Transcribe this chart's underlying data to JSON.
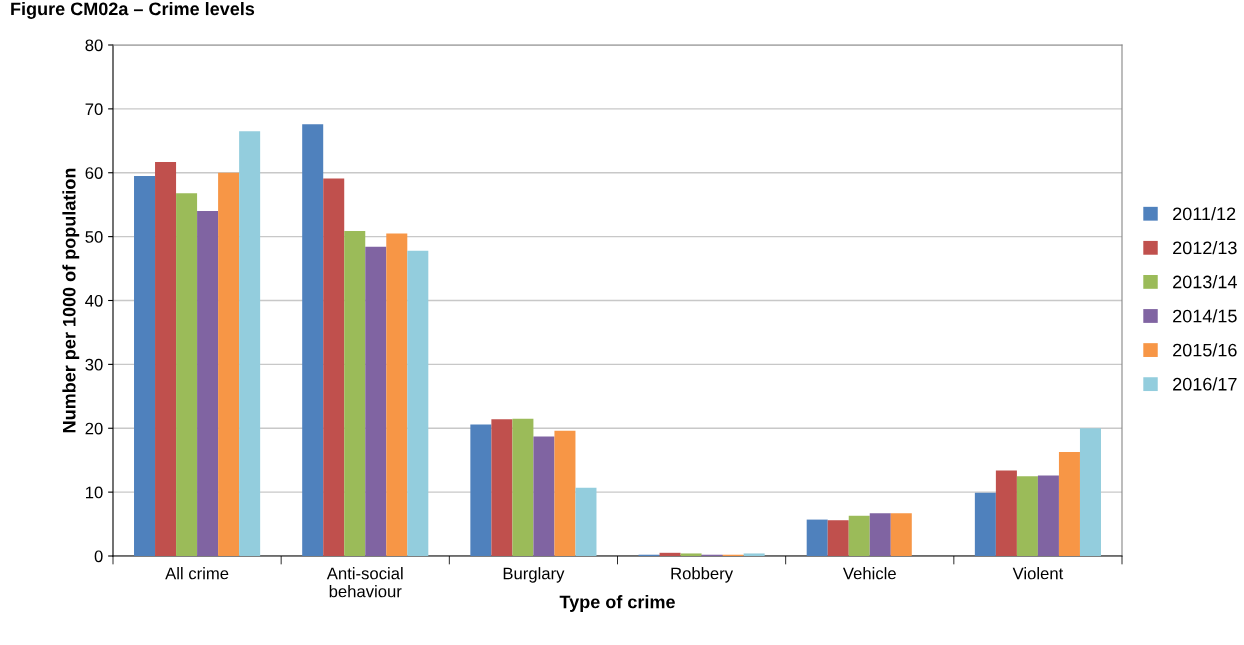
{
  "chart_data": {
    "type": "bar",
    "title": "Figure CM02a – Crime levels",
    "xlabel": "Type of crime",
    "ylabel": "Number per 1000 of population",
    "categories": [
      "All crime",
      "Anti-social\nbehaviour",
      "Burglary",
      "Robbery",
      "Vehicle",
      "Violent"
    ],
    "series": [
      {
        "name": "2011/12",
        "color": "#4f81bd",
        "values": [
          59.5,
          67.6,
          20.6,
          0.2,
          5.7,
          9.9
        ]
      },
      {
        "name": "2012/13",
        "color": "#c0504d",
        "values": [
          61.7,
          59.1,
          21.4,
          0.5,
          5.6,
          13.4
        ]
      },
      {
        "name": "2013/14",
        "color": "#9bbb59",
        "values": [
          56.8,
          50.9,
          21.5,
          0.4,
          6.3,
          12.5
        ]
      },
      {
        "name": "2014/15",
        "color": "#8064a2",
        "values": [
          54.0,
          48.4,
          18.7,
          0.2,
          6.7,
          12.6
        ]
      },
      {
        "name": "2015/16",
        "color": "#f79646",
        "values": [
          60.0,
          50.5,
          19.6,
          0.2,
          6.7,
          16.3
        ]
      },
      {
        "name": "2016/17",
        "color": "#93cddd",
        "values": [
          66.5,
          47.8,
          10.7,
          0.4,
          null,
          20.0
        ]
      }
    ],
    "ylim": [
      0,
      80
    ],
    "yticks": [
      0,
      10,
      20,
      30,
      40,
      50,
      60,
      70,
      80
    ],
    "grid": "y",
    "legend": "right"
  }
}
